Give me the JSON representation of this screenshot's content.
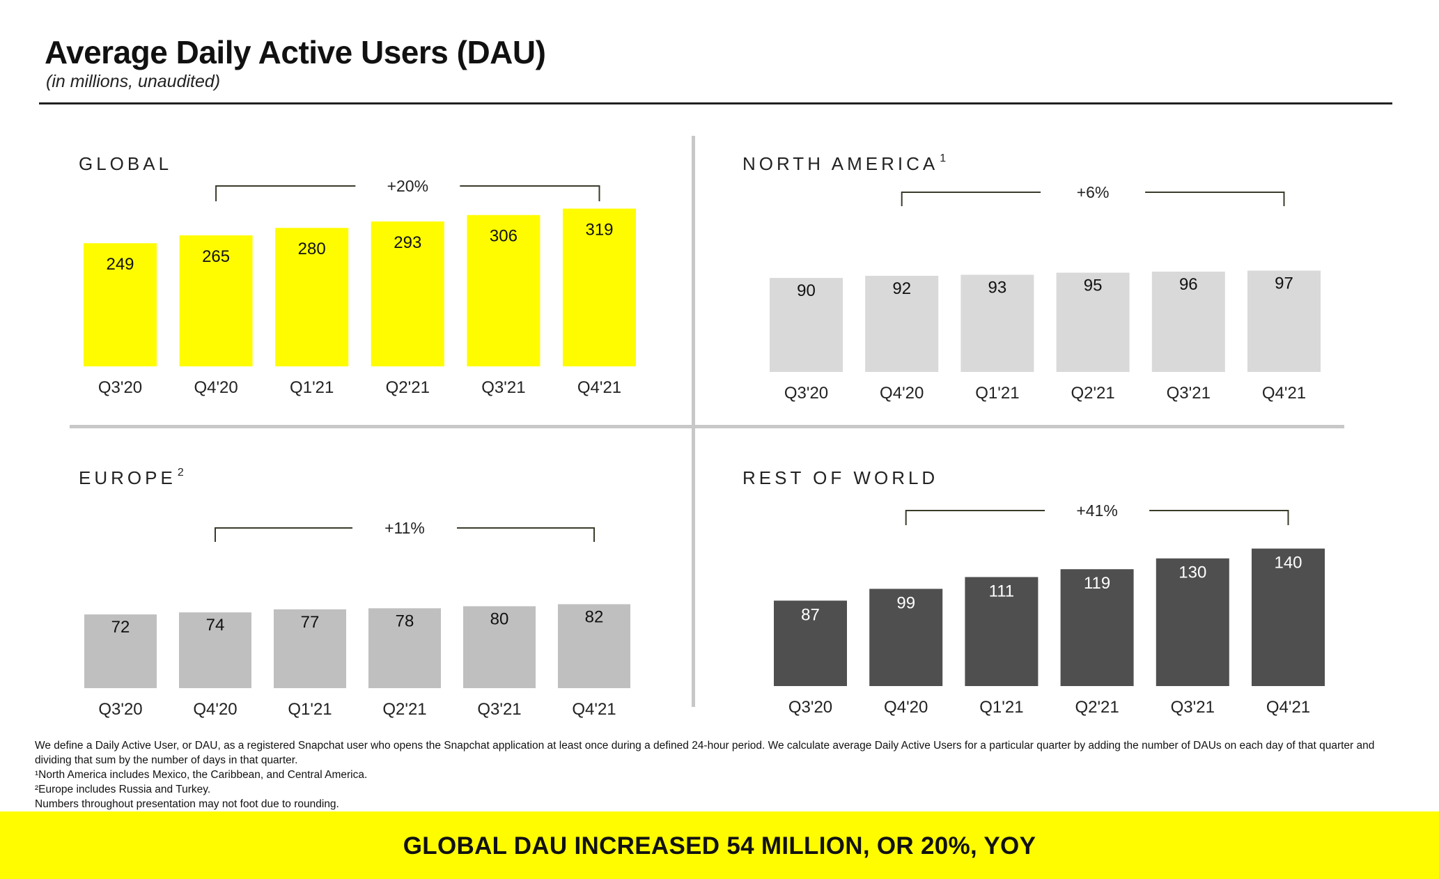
{
  "header": {
    "title": "Average Daily Active Users (DAU)",
    "subtitle": "(in millions, unaudited)"
  },
  "colors": {
    "global": "#fffc00",
    "north_america": "#d9d9d9",
    "europe": "#bfbfbf",
    "rest_of_world": "#4f4f4f"
  },
  "chart_data": [
    {
      "type": "bar",
      "title": "GLOBAL",
      "title_superscript": "",
      "categories": [
        "Q3'20",
        "Q4'20",
        "Q1'21",
        "Q2'21",
        "Q3'21",
        "Q4'21"
      ],
      "values": [
        249,
        265,
        280,
        293,
        306,
        319
      ],
      "growth_annotation": "+20%",
      "growth_from": "Q4'20",
      "growth_to": "Q4'21",
      "bar_color": "#fffc00",
      "label_color": "#111111"
    },
    {
      "type": "bar",
      "title": "NORTH AMERICA",
      "title_superscript": "1",
      "categories": [
        "Q3'20",
        "Q4'20",
        "Q1'21",
        "Q2'21",
        "Q3'21",
        "Q4'21"
      ],
      "values": [
        90,
        92,
        93,
        95,
        96,
        97
      ],
      "growth_annotation": "+6%",
      "growth_from": "Q4'20",
      "growth_to": "Q4'21",
      "bar_color": "#d9d9d9",
      "label_color": "#111111"
    },
    {
      "type": "bar",
      "title": "EUROPE",
      "title_superscript": "2",
      "categories": [
        "Q3'20",
        "Q4'20",
        "Q1'21",
        "Q2'21",
        "Q3'21",
        "Q4'21"
      ],
      "values": [
        72,
        74,
        77,
        78,
        80,
        82
      ],
      "growth_annotation": "+11%",
      "growth_from": "Q4'20",
      "growth_to": "Q4'21",
      "bar_color": "#bfbfbf",
      "label_color": "#111111"
    },
    {
      "type": "bar",
      "title": "REST OF WORLD",
      "title_superscript": "",
      "categories": [
        "Q3'20",
        "Q4'20",
        "Q1'21",
        "Q2'21",
        "Q3'21",
        "Q4'21"
      ],
      "values": [
        87,
        99,
        111,
        119,
        130,
        140
      ],
      "growth_annotation": "+41%",
      "growth_from": "Q4'20",
      "growth_to": "Q4'21",
      "bar_color": "#4f4f4f",
      "label_color": "#ffffff"
    }
  ],
  "footnotes": {
    "definition": "We define a Daily Active User, or DAU, as a registered Snapchat user who opens the Snapchat application at least once during a defined 24-hour period. We calculate average Daily Active Users for a particular quarter by adding the number of DAUs on each day of that quarter and dividing that sum by the number of days in that quarter.",
    "note1": "¹North America includes Mexico, the Caribbean, and Central America.",
    "note2": "²Europe includes Russia and Turkey.",
    "rounding": "Numbers throughout presentation may not foot due to rounding."
  },
  "banner": {
    "text": "GLOBAL DAU INCREASED 54 MILLION, OR 20%, YOY"
  }
}
